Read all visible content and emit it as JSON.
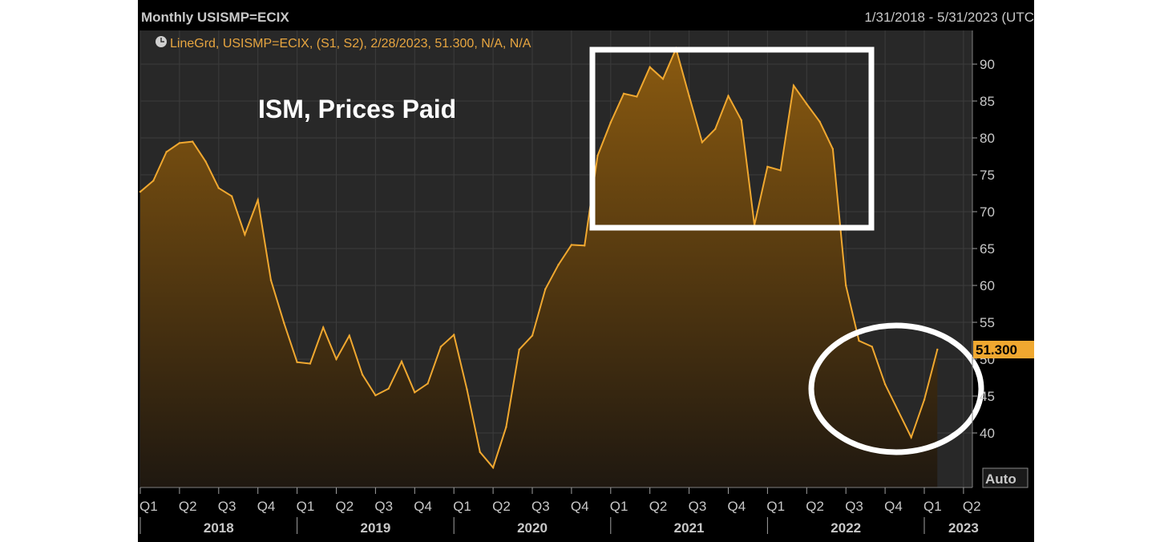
{
  "header": {
    "title": "Monthly USISMP=ECIX",
    "date_range": "1/31/2018 - 5/31/2023 (UTC"
  },
  "legend": {
    "text": "LineGrd, USISMP=ECIX, (S1, S2), 2/28/2023, 51.300, N/A, N/A"
  },
  "annotation": "ISM, Prices Paid",
  "auto_button": "Auto",
  "colors": {
    "background": "#000000",
    "plot_background": "#282828",
    "line": "#f0a830",
    "highlight": "#ffffff"
  },
  "chart_data": {
    "type": "area",
    "x": [
      "2018-01",
      "2018-02",
      "2018-03",
      "2018-04",
      "2018-05",
      "2018-06",
      "2018-07",
      "2018-08",
      "2018-09",
      "2018-10",
      "2018-11",
      "2018-12",
      "2019-01",
      "2019-02",
      "2019-03",
      "2019-04",
      "2019-05",
      "2019-06",
      "2019-07",
      "2019-08",
      "2019-09",
      "2019-10",
      "2019-11",
      "2019-12",
      "2020-01",
      "2020-02",
      "2020-03",
      "2020-04",
      "2020-05",
      "2020-06",
      "2020-07",
      "2020-08",
      "2020-09",
      "2020-10",
      "2020-11",
      "2020-12",
      "2021-01",
      "2021-02",
      "2021-03",
      "2021-04",
      "2021-05",
      "2021-06",
      "2021-07",
      "2021-08",
      "2021-09",
      "2021-10",
      "2021-11",
      "2021-12",
      "2022-01",
      "2022-02",
      "2022-03",
      "2022-04",
      "2022-05",
      "2022-06",
      "2022-07",
      "2022-08",
      "2022-09",
      "2022-10",
      "2022-11",
      "2022-12",
      "2023-01",
      "2023-02"
    ],
    "values": [
      72.7,
      74.2,
      78.1,
      79.3,
      79.5,
      76.8,
      73.2,
      72.1,
      66.9,
      71.6,
      60.7,
      54.9,
      49.6,
      49.4,
      54.3,
      50.0,
      53.2,
      47.9,
      45.1,
      46.0,
      49.7,
      45.5,
      46.7,
      51.7,
      53.3,
      45.9,
      37.4,
      35.3,
      40.8,
      51.3,
      53.2,
      59.5,
      62.8,
      65.5,
      65.4,
      77.6,
      82.1,
      86.0,
      85.6,
      89.6,
      88.0,
      92.1,
      85.7,
      79.4,
      81.2,
      85.7,
      82.4,
      68.2,
      76.1,
      75.6,
      87.1,
      84.6,
      82.2,
      78.5,
      60.0,
      52.5,
      51.7,
      46.6,
      43.0,
      39.4,
      44.5,
      51.3
    ],
    "last_value": "51.300",
    "ylim": [
      34,
      93
    ],
    "yticks": [
      "40",
      "45",
      "50",
      "55",
      "60",
      "65",
      "70",
      "75",
      "80",
      "85",
      "90"
    ],
    "xtick_labels": [
      "Q1",
      "Q2",
      "Q3",
      "Q4",
      "Q1",
      "Q2",
      "Q3",
      "Q4",
      "Q1",
      "Q2",
      "Q3",
      "Q4",
      "Q1",
      "Q2",
      "Q3",
      "Q4",
      "Q1",
      "Q2",
      "Q3",
      "Q4",
      "Q1",
      "Q2"
    ],
    "year_labels": [
      "2018",
      "2019",
      "2020",
      "2021",
      "2022",
      "2023"
    ],
    "grid": true
  }
}
